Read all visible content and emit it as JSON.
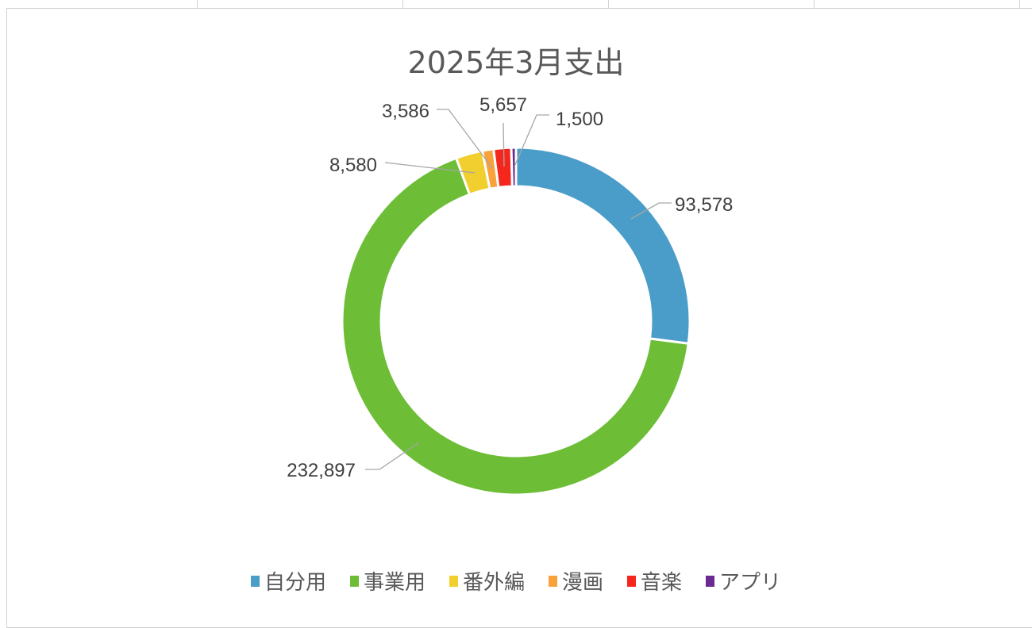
{
  "chart_data": {
    "type": "doughnut",
    "title": "2025年3月支出",
    "categories": [
      "自分用",
      "事業用",
      "番外編",
      "漫画",
      "音楽",
      "アプリ"
    ],
    "values": [
      93578,
      232897,
      8580,
      3586,
      5657,
      1500
    ],
    "data_labels": [
      "93,578",
      "232,897",
      "8,580",
      "3,586",
      "5,657",
      "1,500"
    ],
    "colors": [
      "#4a9cc9",
      "#6dbd37",
      "#f0cf2e",
      "#f7a23a",
      "#f5271d",
      "#6b2a8f"
    ],
    "legend_position": "bottom"
  }
}
